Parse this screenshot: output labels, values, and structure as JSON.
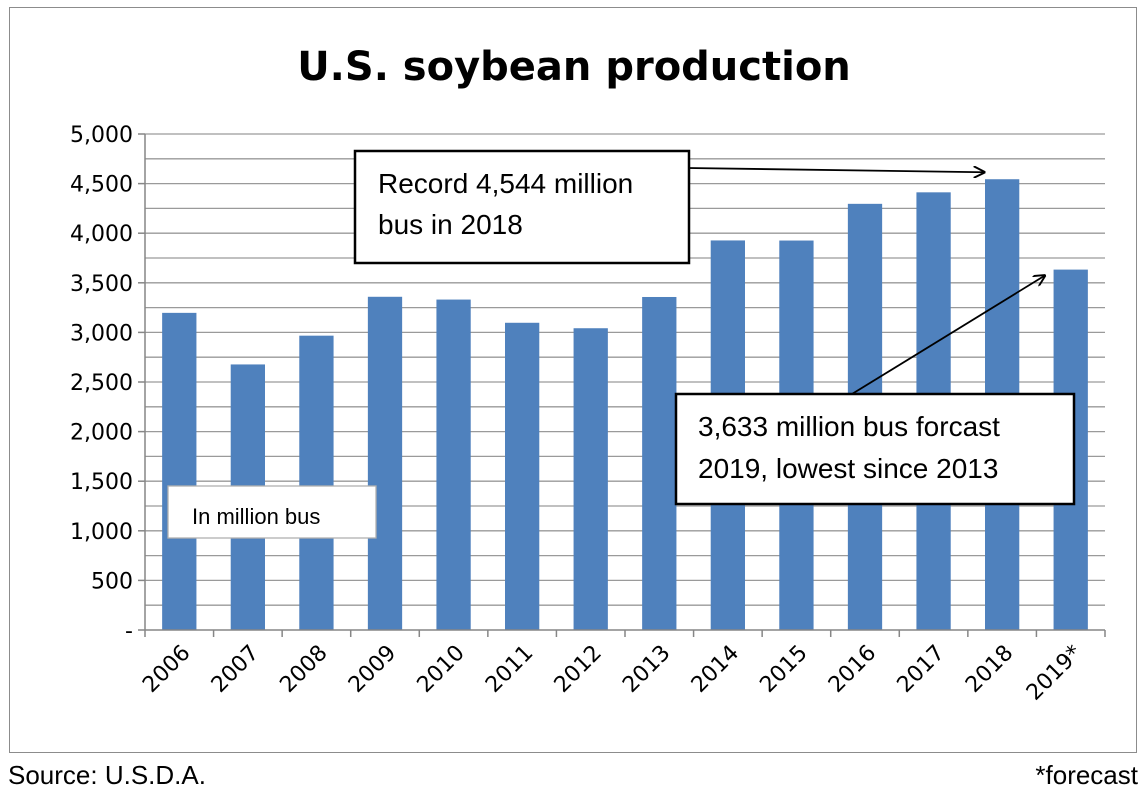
{
  "chart_data": {
    "type": "bar",
    "title": "U.S. soybean production",
    "categories": [
      "2006",
      "2007",
      "2008",
      "2009",
      "2010",
      "2011",
      "2012",
      "2013",
      "2014",
      "2015",
      "2016",
      "2017",
      "2018",
      "2019*"
    ],
    "values": [
      3197,
      2677,
      2967,
      3359,
      3331,
      3097,
      3042,
      3357,
      3927,
      3926,
      4296,
      4412,
      4544,
      3633
    ],
    "ylim": [
      0,
      5000
    ],
    "yticks": [
      0,
      500,
      1000,
      1500,
      2000,
      2500,
      3000,
      3500,
      4000,
      4500,
      5000
    ],
    "ytick_labels": [
      "-",
      "500",
      "1,000",
      "1,500",
      "2,000",
      "2,500",
      "3,000",
      "3,500",
      "4,000",
      "4,500",
      "5,000"
    ],
    "xlabel": "",
    "ylabel": "",
    "grid": true,
    "bar_color": "#4f81bd",
    "unit_label": "In million bus",
    "annotations": [
      {
        "line1": "Record 4,544 million",
        "line2": "bus in 2018",
        "points_to": "2018"
      },
      {
        "line1": "3,633 million bus forcast",
        "line2": "2019, lowest since 2013",
        "points_to": "2019*"
      }
    ]
  },
  "footer": {
    "source": "Source: U.S.D.A.",
    "note": "*forecast"
  }
}
